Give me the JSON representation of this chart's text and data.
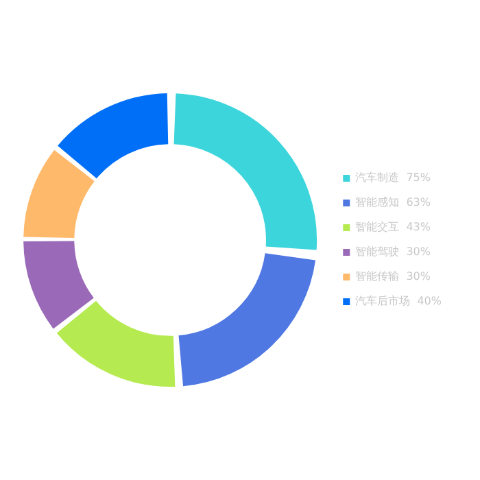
{
  "chart_data": {
    "type": "donut",
    "categories": [
      "汽车制造",
      "智能感知",
      "智能交互",
      "智能驾驶",
      "智能传输",
      "汽车后市场"
    ],
    "values": [
      75,
      63,
      43,
      30,
      30,
      40
    ],
    "value_labels": [
      "75%",
      "63%",
      "43%",
      "30%",
      "30%",
      "40%"
    ],
    "colors": [
      "#3dd5dc",
      "#5078e3",
      "#b5eb50",
      "#9a6ab8",
      "#ffb96b",
      "#006ff8"
    ],
    "legend": "right"
  }
}
